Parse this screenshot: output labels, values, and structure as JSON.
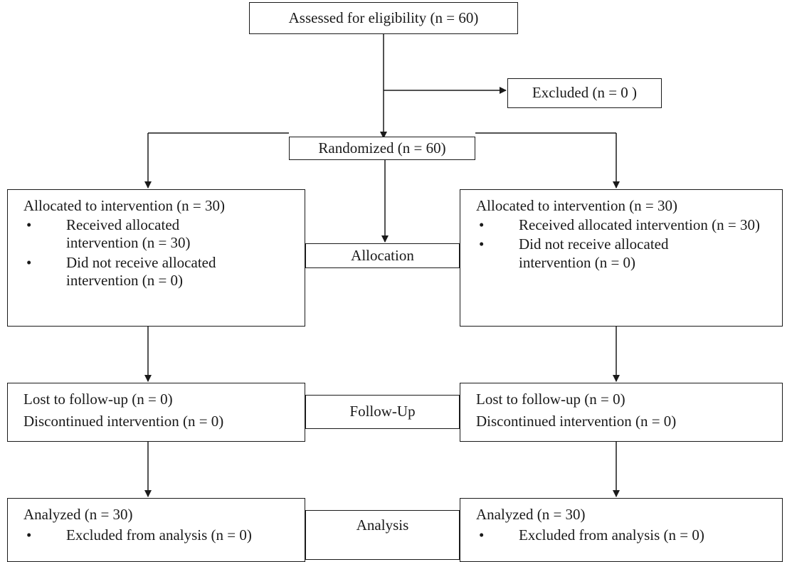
{
  "flow": {
    "assessed": "Assessed for eligibility (n = 60)",
    "excluded": "Excluded (n = 0 )",
    "randomized": "Randomized (n = 60)",
    "stages": {
      "allocation": "Allocation",
      "follow_up": "Follow-Up",
      "analysis": "Analysis"
    },
    "left": {
      "allocation": {
        "title": "Allocated to intervention (n = 30)",
        "bullets": [
          "Received allocated intervention (n = 30)",
          "Did not receive allocated intervention (n = 0)"
        ]
      },
      "follow_up": [
        "Lost to follow-up (n = 0)",
        "Discontinued intervention (n = 0)"
      ],
      "analysis": {
        "title": "Analyzed (n = 30)",
        "bullets": [
          "Excluded from analysis (n = 0)"
        ]
      }
    },
    "right": {
      "allocation": {
        "title": "Allocated to intervention (n = 30)",
        "bullets": [
          "Received allocated intervention (n = 30)",
          "Did not receive allocated intervention (n = 0)"
        ]
      },
      "follow_up": [
        "Lost to follow-up (n = 0)",
        "Discontinued intervention (n = 0)"
      ],
      "analysis": {
        "title": "Analyzed (n = 30)",
        "bullets": [
          "Excluded from analysis (n = 0)"
        ]
      }
    },
    "bullet_glyph": "•"
  }
}
